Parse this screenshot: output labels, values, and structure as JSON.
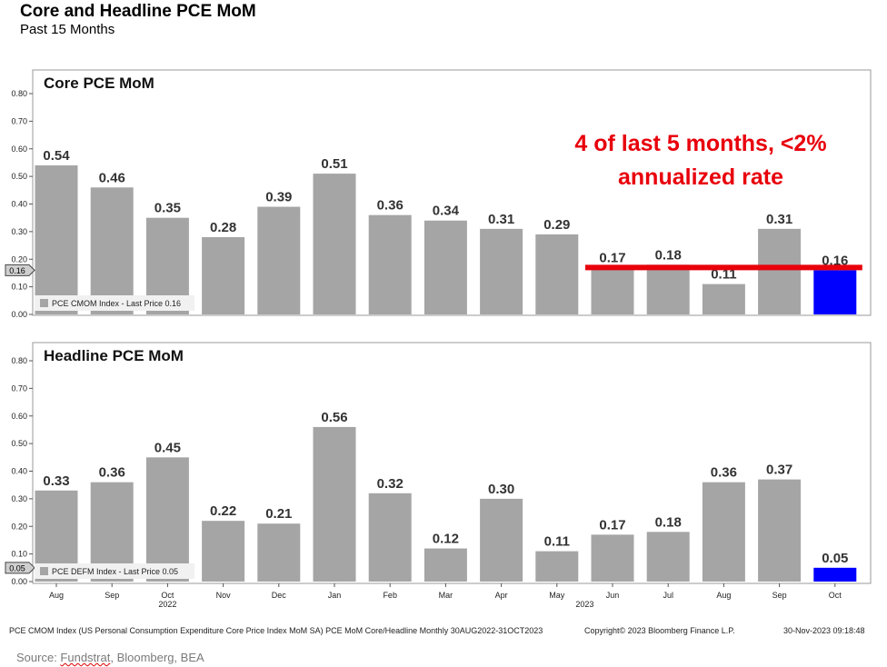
{
  "header": {
    "title": "Core and Headline PCE MoM",
    "subtitle": "Past 15 Months"
  },
  "annotation": {
    "line1": "4 of last 5 months, <2%",
    "line2": "annualized rate",
    "color": "#e8000b",
    "threshold": 0.17
  },
  "colors": {
    "bar": "#a5a5a5",
    "highlight": "#0000ff",
    "threshold_line": "#e8000b"
  },
  "chart_data": [
    {
      "type": "bar",
      "title": "Core PCE MoM",
      "categories": [
        "Aug",
        "Sep",
        "Oct",
        "Nov",
        "Dec",
        "Jan",
        "Feb",
        "Mar",
        "Apr",
        "May",
        "Jun",
        "Jul",
        "Aug",
        "Sep",
        "Oct"
      ],
      "values": [
        0.54,
        0.46,
        0.35,
        0.28,
        0.39,
        0.51,
        0.36,
        0.34,
        0.31,
        0.29,
        0.17,
        0.18,
        0.11,
        0.31,
        0.16
      ],
      "labels": [
        "0.54",
        "0.46",
        "0.35",
        "0.28",
        "0.39",
        "0.51",
        "0.36",
        "0.34",
        "0.31",
        "0.29",
        "0.17",
        "0.18",
        "0.11",
        "0.31",
        "0.16"
      ],
      "highlight_index": 14,
      "ylim": [
        0,
        0.8
      ],
      "yticks": [
        "0.00",
        "0.10",
        "0.20",
        "0.30",
        "0.40",
        "0.50",
        "0.60",
        "0.70",
        "0.80"
      ],
      "last_price_tag": "0.16",
      "legend": "PCE CMOM Index - Last Price 0.16",
      "legend_position": "bottom-left",
      "grid": false
    },
    {
      "type": "bar",
      "title": "Headline PCE MoM",
      "categories": [
        "Aug",
        "Sep",
        "Oct",
        "Nov",
        "Dec",
        "Jan",
        "Feb",
        "Mar",
        "Apr",
        "May",
        "Jun",
        "Jul",
        "Aug",
        "Sep",
        "Oct"
      ],
      "values": [
        0.33,
        0.36,
        0.45,
        0.22,
        0.21,
        0.56,
        0.32,
        0.12,
        0.3,
        0.11,
        0.17,
        0.18,
        0.36,
        0.37,
        0.05
      ],
      "labels": [
        "0.33",
        "0.36",
        "0.45",
        "0.22",
        "0.21",
        "0.56",
        "0.32",
        "0.12",
        "0.30",
        "0.11",
        "0.17",
        "0.18",
        "0.36",
        "0.37",
        "0.05"
      ],
      "highlight_index": 14,
      "ylim": [
        0,
        0.8
      ],
      "yticks": [
        "0.00",
        "0.10",
        "0.20",
        "0.30",
        "0.40",
        "0.50",
        "0.60",
        "0.70",
        "0.80"
      ],
      "last_price_tag": "0.05",
      "legend": "PCE DEFM Index - Last Price 0.05",
      "legend_position": "bottom-left",
      "grid": false,
      "year_labels": [
        {
          "index": 2,
          "text": "2022"
        },
        {
          "index": 9.5,
          "text": "2023"
        }
      ]
    }
  ],
  "footer": {
    "left": "PCE CMOM Index (US Personal Consumption Expenditure Core Price Index MoM SA) PCE MoM Core/Headline  Monthly 30AUG2022-31OCT2023",
    "copyright": "Copyright© 2023 Bloomberg Finance L.P.",
    "timestamp": "30-Nov-2023 09:18:48",
    "source_prefix": "Source: ",
    "source_underlined": "Fundstrat",
    "source_rest": ", Bloomberg, BEA"
  }
}
